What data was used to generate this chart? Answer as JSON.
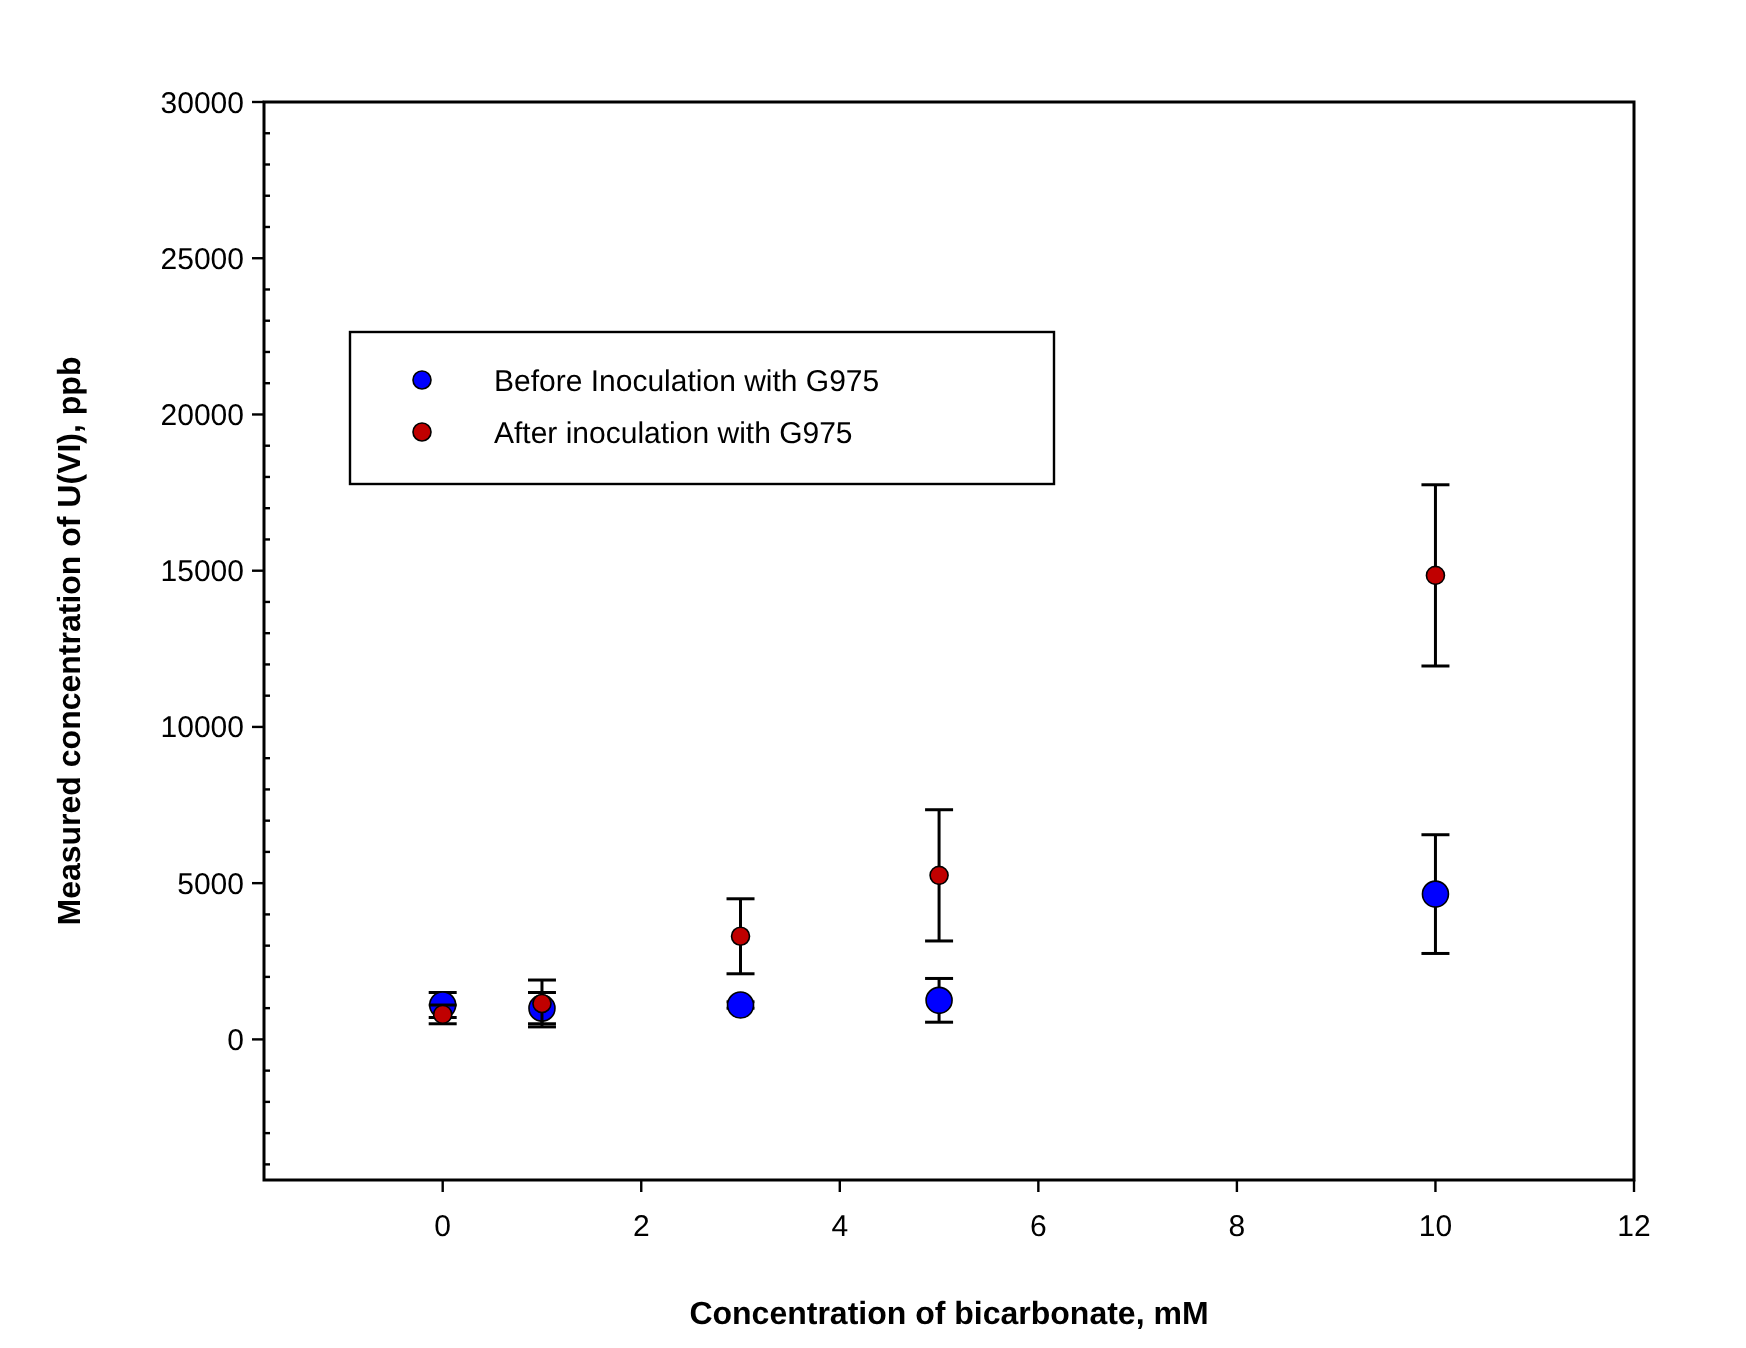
{
  "chart_data": {
    "type": "scatter",
    "xlabel": "Concentration of bicarbonate, mM",
    "ylabel": "Measured concentration of U(VI), ppb",
    "xlim": [
      -1.8,
      12
    ],
    "xticks": [
      0,
      2,
      4,
      6,
      8,
      10,
      12
    ],
    "ylim": [
      -4500,
      30000
    ],
    "yticks": [
      {
        "value": -4000,
        "label": null
      },
      {
        "value": -3000,
        "label": null
      },
      {
        "value": -2000,
        "label": null
      },
      {
        "value": -1000,
        "label": null
      },
      0,
      {
        "value": 1000,
        "label": null
      },
      {
        "value": 2000,
        "label": null
      },
      {
        "value": 3000,
        "label": null
      },
      {
        "value": 4000,
        "label": null
      },
      5000,
      {
        "value": 6000,
        "label": null
      },
      {
        "value": 7000,
        "label": null
      },
      {
        "value": 8000,
        "label": null
      },
      {
        "value": 9000,
        "label": null
      },
      10000,
      {
        "value": 11000,
        "label": null
      },
      {
        "value": 12000,
        "label": null
      },
      {
        "value": 13000,
        "label": null
      },
      {
        "value": 14000,
        "label": null
      },
      15000,
      {
        "value": 16000,
        "label": null
      },
      {
        "value": 17000,
        "label": null
      },
      {
        "value": 18000,
        "label": null
      },
      {
        "value": 19000,
        "label": null
      },
      20000,
      {
        "value": 21000,
        "label": null
      },
      {
        "value": 22000,
        "label": null
      },
      {
        "value": 23000,
        "label": null
      },
      {
        "value": 24000,
        "label": null
      },
      25000,
      {
        "value": 26000,
        "label": null
      },
      {
        "value": 27000,
        "label": null
      },
      {
        "value": 28000,
        "label": null
      },
      {
        "value": 29000,
        "label": null
      },
      30000
    ],
    "grid": false,
    "legend": "top left",
    "marker": "circle",
    "series": [
      {
        "name": "Before Inoculation with G975",
        "color": "#0000ff",
        "x": [
          0,
          1,
          3,
          5,
          10
        ],
        "values": [
          1100,
          1000,
          1100,
          1250,
          4650
        ],
        "errors": [
          400,
          500,
          100,
          700,
          1900
        ]
      },
      {
        "name": "After inoculation with G975",
        "color": "#c00000",
        "x": [
          0,
          1,
          3,
          5,
          10
        ],
        "values": [
          800,
          1150,
          3300,
          5250,
          14850
        ],
        "errors": [
          300,
          750,
          1200,
          2100,
          2900
        ]
      }
    ]
  }
}
